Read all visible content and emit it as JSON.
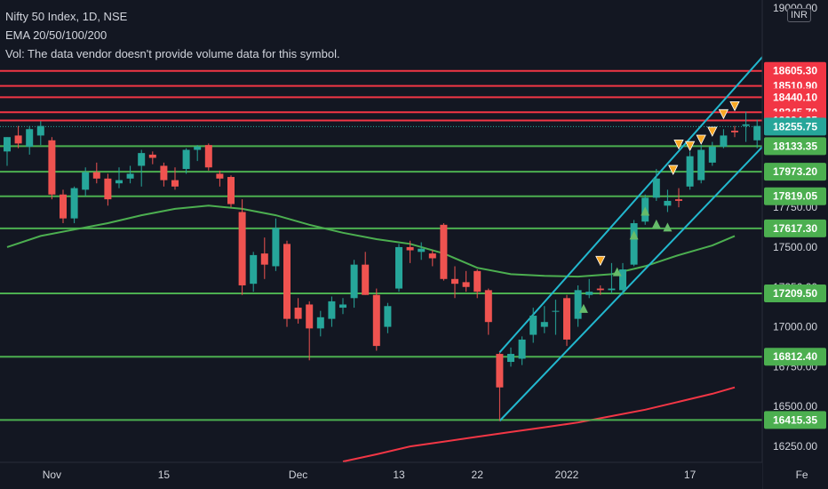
{
  "legend": {
    "symbol_line": "Nifty 50 Index, 1D, NSE",
    "ema_line": "EMA 20/50/100/200",
    "volume_line": "Vol: The data vendor doesn't provide volume data for this symbol."
  },
  "currency": "INR",
  "colors": {
    "background": "#131722",
    "up_candle": "#26a69a",
    "down_candle": "#ef5350",
    "resistance": "#f23645",
    "support": "#4caf50",
    "channel": "#22b8cf",
    "ema50": "#4caf50",
    "ema200": "#f23645",
    "last_price": "#26a69a",
    "buy_signal": "#66bb6a",
    "sell_signal": "#f9a825"
  },
  "chart_data": {
    "type": "candlestick",
    "title": "Nifty 50 Index, 1D, NSE",
    "ylim": [
      16150,
      19050
    ],
    "y_ticks": [
      {
        "value": 16250,
        "label": "16250.00"
      },
      {
        "value": 16500,
        "label": "16500.00"
      },
      {
        "value": 16750,
        "label": "16750.00"
      },
      {
        "value": 17000,
        "label": "17000.00"
      },
      {
        "value": 17250,
        "label": "17250.00"
      },
      {
        "value": 17500,
        "label": "17500.00"
      },
      {
        "value": 17750,
        "label": "17750.00"
      },
      {
        "value": 19000,
        "label": "19000.00"
      }
    ],
    "x_ticks": [
      {
        "bar": 4,
        "label": "Nov"
      },
      {
        "bar": 14,
        "label": "15"
      },
      {
        "bar": 26,
        "label": "Dec"
      },
      {
        "bar": 35,
        "label": "13"
      },
      {
        "bar": 42,
        "label": "22"
      },
      {
        "bar": 50,
        "label": "2022"
      },
      {
        "bar": 61,
        "label": "17"
      },
      {
        "bar": 71,
        "label": "Fe"
      }
    ],
    "resistance_levels": [
      18605.3,
      18510.9,
      18440.1,
      18345.7,
      18294.25
    ],
    "support_levels": [
      18133.35,
      17973.2,
      17819.05,
      17617.3,
      17209.5,
      16812.4,
      16415.35
    ],
    "last_price": 18255.75,
    "candles": [
      {
        "o": 18100,
        "h": 18190,
        "l": 18010,
        "c": 18190
      },
      {
        "o": 18200,
        "h": 18260,
        "l": 18120,
        "c": 18150
      },
      {
        "o": 18130,
        "h": 18260,
        "l": 18080,
        "c": 18240
      },
      {
        "o": 18200,
        "h": 18290,
        "l": 18140,
        "c": 18260
      },
      {
        "o": 18170,
        "h": 18190,
        "l": 17800,
        "c": 17830
      },
      {
        "o": 17830,
        "h": 17860,
        "l": 17650,
        "c": 17680
      },
      {
        "o": 17680,
        "h": 17880,
        "l": 17650,
        "c": 17870
      },
      {
        "o": 17860,
        "h": 18000,
        "l": 17820,
        "c": 17970
      },
      {
        "o": 17970,
        "h": 18030,
        "l": 17900,
        "c": 17930
      },
      {
        "o": 17930,
        "h": 17960,
        "l": 17760,
        "c": 17800
      },
      {
        "o": 17900,
        "h": 18000,
        "l": 17870,
        "c": 17920
      },
      {
        "o": 17930,
        "h": 18010,
        "l": 17900,
        "c": 17960
      },
      {
        "o": 18010,
        "h": 18110,
        "l": 17880,
        "c": 18090
      },
      {
        "o": 18080,
        "h": 18100,
        "l": 18020,
        "c": 18060
      },
      {
        "o": 18010,
        "h": 18030,
        "l": 17880,
        "c": 17920
      },
      {
        "o": 17920,
        "h": 18000,
        "l": 17860,
        "c": 17880
      },
      {
        "o": 17990,
        "h": 18120,
        "l": 17960,
        "c": 18110
      },
      {
        "o": 18110,
        "h": 18140,
        "l": 18040,
        "c": 18130
      },
      {
        "o": 18140,
        "h": 18150,
        "l": 17980,
        "c": 18000
      },
      {
        "o": 17960,
        "h": 17980,
        "l": 17880,
        "c": 17930
      },
      {
        "o": 17940,
        "h": 17950,
        "l": 17750,
        "c": 17770
      },
      {
        "o": 17720,
        "h": 17800,
        "l": 17200,
        "c": 17260
      },
      {
        "o": 17270,
        "h": 17470,
        "l": 17220,
        "c": 17450
      },
      {
        "o": 17460,
        "h": 17560,
        "l": 17300,
        "c": 17390
      },
      {
        "o": 17380,
        "h": 17680,
        "l": 17350,
        "c": 17620
      },
      {
        "o": 17520,
        "h": 17540,
        "l": 17000,
        "c": 17050
      },
      {
        "o": 17120,
        "h": 17180,
        "l": 17020,
        "c": 17050
      },
      {
        "o": 17140,
        "h": 17160,
        "l": 16790,
        "c": 16990
      },
      {
        "o": 16990,
        "h": 17100,
        "l": 16940,
        "c": 17060
      },
      {
        "o": 17050,
        "h": 17190,
        "l": 17000,
        "c": 17160
      },
      {
        "o": 17120,
        "h": 17180,
        "l": 17080,
        "c": 17140
      },
      {
        "o": 17180,
        "h": 17420,
        "l": 17120,
        "c": 17390
      },
      {
        "o": 17390,
        "h": 17470,
        "l": 17200,
        "c": 17200
      },
      {
        "o": 17200,
        "h": 17240,
        "l": 16850,
        "c": 16880
      },
      {
        "o": 17000,
        "h": 17150,
        "l": 16960,
        "c": 17130
      },
      {
        "o": 17240,
        "h": 17520,
        "l": 17220,
        "c": 17500
      },
      {
        "o": 17500,
        "h": 17540,
        "l": 17400,
        "c": 17480
      },
      {
        "o": 17470,
        "h": 17530,
        "l": 17420,
        "c": 17490
      },
      {
        "o": 17460,
        "h": 17480,
        "l": 17380,
        "c": 17430
      },
      {
        "o": 17640,
        "h": 17650,
        "l": 17290,
        "c": 17300
      },
      {
        "o": 17300,
        "h": 17380,
        "l": 17180,
        "c": 17270
      },
      {
        "o": 17280,
        "h": 17350,
        "l": 17220,
        "c": 17250
      },
      {
        "o": 17350,
        "h": 17360,
        "l": 17180,
        "c": 17220
      },
      {
        "o": 17230,
        "h": 17240,
        "l": 16950,
        "c": 17030
      },
      {
        "o": 16830,
        "h": 16840,
        "l": 16410,
        "c": 16620
      },
      {
        "o": 16780,
        "h": 16870,
        "l": 16750,
        "c": 16830
      },
      {
        "o": 16800,
        "h": 16940,
        "l": 16760,
        "c": 16920
      },
      {
        "o": 16950,
        "h": 17120,
        "l": 16900,
        "c": 17070
      },
      {
        "o": 17000,
        "h": 17130,
        "l": 16960,
        "c": 17030
      },
      {
        "o": 17100,
        "h": 17170,
        "l": 16950,
        "c": 17100
      },
      {
        "o": 17180,
        "h": 17200,
        "l": 16880,
        "c": 16920
      },
      {
        "o": 17050,
        "h": 17260,
        "l": 17000,
        "c": 17230
      },
      {
        "o": 17200,
        "h": 17300,
        "l": 17180,
        "c": 17220
      },
      {
        "o": 17240,
        "h": 17260,
        "l": 17200,
        "c": 17230
      },
      {
        "o": 17230,
        "h": 17400,
        "l": 17210,
        "c": 17240
      },
      {
        "o": 17230,
        "h": 17400,
        "l": 17200,
        "c": 17360
      },
      {
        "o": 17390,
        "h": 17670,
        "l": 17380,
        "c": 17650
      },
      {
        "o": 17660,
        "h": 17830,
        "l": 17640,
        "c": 17810
      },
      {
        "o": 17810,
        "h": 17990,
        "l": 17790,
        "c": 17930
      },
      {
        "o": 17760,
        "h": 17860,
        "l": 17720,
        "c": 17790
      },
      {
        "o": 17800,
        "h": 17870,
        "l": 17750,
        "c": 17790
      },
      {
        "o": 17880,
        "h": 18100,
        "l": 17860,
        "c": 18070
      },
      {
        "o": 17920,
        "h": 18140,
        "l": 17900,
        "c": 18110
      },
      {
        "o": 18030,
        "h": 18160,
        "l": 18010,
        "c": 18130
      },
      {
        "o": 18130,
        "h": 18240,
        "l": 18120,
        "c": 18200
      },
      {
        "o": 18230,
        "h": 18260,
        "l": 18190,
        "c": 18220
      },
      {
        "o": 18260,
        "h": 18350,
        "l": 18160,
        "c": 18270
      },
      {
        "o": 18170,
        "h": 18300,
        "l": 18120,
        "c": 18260
      }
    ],
    "ema50": [
      {
        "bar": 0,
        "v": 17500
      },
      {
        "bar": 3,
        "v": 17570
      },
      {
        "bar": 6,
        "v": 17610
      },
      {
        "bar": 9,
        "v": 17650
      },
      {
        "bar": 12,
        "v": 17700
      },
      {
        "bar": 15,
        "v": 17740
      },
      {
        "bar": 18,
        "v": 17760
      },
      {
        "bar": 21,
        "v": 17740
      },
      {
        "bar": 24,
        "v": 17700
      },
      {
        "bar": 27,
        "v": 17640
      },
      {
        "bar": 30,
        "v": 17590
      },
      {
        "bar": 33,
        "v": 17550
      },
      {
        "bar": 36,
        "v": 17520
      },
      {
        "bar": 39,
        "v": 17460
      },
      {
        "bar": 42,
        "v": 17370
      },
      {
        "bar": 45,
        "v": 17330
      },
      {
        "bar": 48,
        "v": 17320
      },
      {
        "bar": 51,
        "v": 17315
      },
      {
        "bar": 54,
        "v": 17330
      },
      {
        "bar": 57,
        "v": 17380
      },
      {
        "bar": 60,
        "v": 17450
      },
      {
        "bar": 63,
        "v": 17510
      },
      {
        "bar": 65,
        "v": 17570
      }
    ],
    "ema200": [
      {
        "bar": 30,
        "v": 16155
      },
      {
        "bar": 33,
        "v": 16200
      },
      {
        "bar": 36,
        "v": 16250
      },
      {
        "bar": 39,
        "v": 16280
      },
      {
        "bar": 42,
        "v": 16310
      },
      {
        "bar": 45,
        "v": 16340
      },
      {
        "bar": 48,
        "v": 16370
      },
      {
        "bar": 51,
        "v": 16400
      },
      {
        "bar": 54,
        "v": 16440
      },
      {
        "bar": 57,
        "v": 16480
      },
      {
        "bar": 60,
        "v": 16530
      },
      {
        "bar": 63,
        "v": 16580
      },
      {
        "bar": 65,
        "v": 16620
      }
    ],
    "channel": {
      "lower": [
        {
          "bar": 44,
          "v": 16410
        },
        {
          "bar": 78,
          "v": 18900
        }
      ],
      "upper": [
        {
          "bar": 44,
          "v": 16840
        },
        {
          "bar": 72,
          "v": 19050
        }
      ]
    },
    "buy_signals": [
      {
        "bar": 51.5,
        "v": 17110
      },
      {
        "bar": 54.5,
        "v": 17340
      },
      {
        "bar": 56,
        "v": 17570
      },
      {
        "bar": 57,
        "v": 17720
      },
      {
        "bar": 58,
        "v": 17640
      },
      {
        "bar": 59,
        "v": 17620
      }
    ],
    "sell_signals": [
      {
        "bar": 53,
        "v": 17420
      },
      {
        "bar": 59.5,
        "v": 17990
      },
      {
        "bar": 60,
        "v": 18150
      },
      {
        "bar": 61,
        "v": 18140
      },
      {
        "bar": 62,
        "v": 18180
      },
      {
        "bar": 63,
        "v": 18230
      },
      {
        "bar": 64,
        "v": 18340
      },
      {
        "bar": 65,
        "v": 18390
      }
    ]
  }
}
